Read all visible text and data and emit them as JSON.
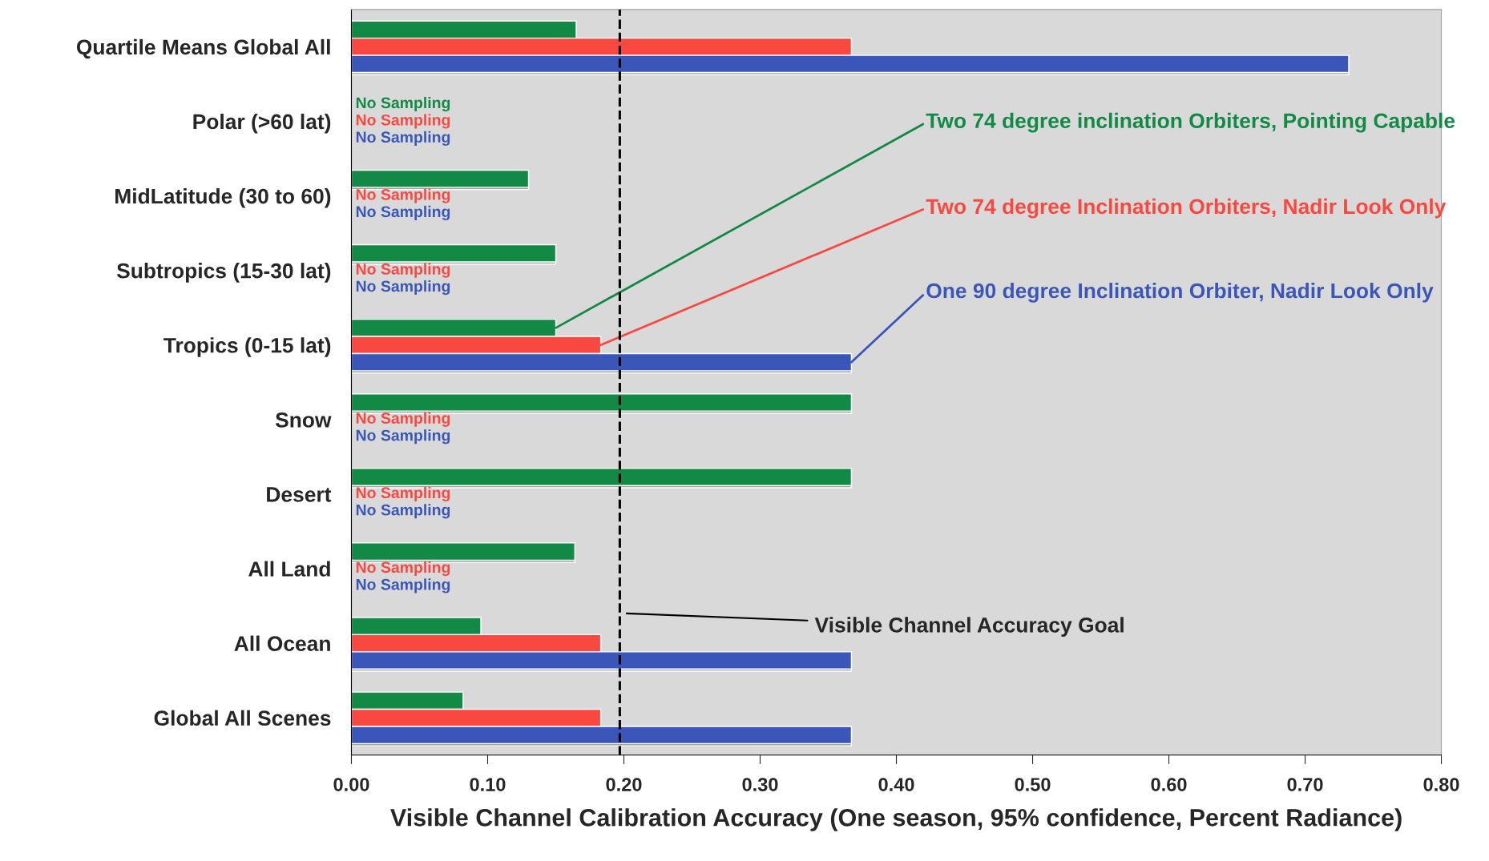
{
  "chart_data": {
    "type": "bar",
    "orientation": "horizontal",
    "xlabel": "Visible Channel Calibration Accuracy (One season, 95% confidence, Percent Radiance)",
    "categories": [
      "Quartile Means Global All",
      "Polar (>60 lat)",
      "MidLatitude (30 to 60)",
      "Subtropics (15-30 lat)",
      "Tropics (0-15 lat)",
      "Snow",
      "Desert",
      "All Land",
      "All Ocean",
      "Global All Scenes"
    ],
    "series": [
      {
        "name": "Two 74 degree inclination Orbiters, Pointing Capable",
        "color": "#128a46",
        "values": [
          0.165,
          null,
          0.13,
          0.15,
          0.15,
          0.367,
          0.367,
          0.164,
          0.095,
          0.082
        ],
        "value_labels": [
          null,
          "No Sampling",
          null,
          null,
          null,
          null,
          null,
          null,
          null,
          null
        ]
      },
      {
        "name": "Two 74 degree Inclination Orbiters, Nadir Look Only",
        "color": "#f84840",
        "values": [
          0.367,
          null,
          null,
          null,
          0.183,
          null,
          null,
          null,
          0.183,
          0.183
        ],
        "value_labels": [
          null,
          "No Sampling",
          "No Sampling",
          "No Sampling",
          null,
          "No Sampling",
          "No Sampling",
          "No Sampling",
          null,
          null
        ]
      },
      {
        "name": "One 90 degree Inclination Orbiter, Nadir Look Only",
        "color": "#3a56b8",
        "values": [
          0.732,
          null,
          null,
          null,
          0.367,
          null,
          null,
          null,
          0.367,
          0.367
        ],
        "value_labels": [
          null,
          "No Sampling",
          "No Sampling",
          "No Sampling",
          null,
          "No Sampling",
          "No Sampling",
          "No Sampling",
          null,
          null
        ]
      }
    ],
    "xlim": [
      0,
      0.8
    ],
    "xticks": [
      {
        "value": 0,
        "label": "0.00"
      },
      {
        "value": 0.1,
        "label": "0.10"
      },
      {
        "value": 0.2,
        "label": "0.20"
      },
      {
        "value": 0.3,
        "label": "0.30"
      },
      {
        "value": 0.4,
        "label": "0.40"
      },
      {
        "value": 0.5,
        "label": "0.50"
      },
      {
        "value": 0.6,
        "label": "0.60"
      },
      {
        "value": 0.7,
        "label": "0.70"
      },
      {
        "value": 0.8,
        "label": "0.80"
      }
    ],
    "ref_lines": [
      {
        "axis": "x",
        "value": 0.197,
        "label": "Visible Channel Accuracy Goal",
        "color": "#000000",
        "line_style": "dashed"
      }
    ],
    "grid": false,
    "legend": false
  }
}
